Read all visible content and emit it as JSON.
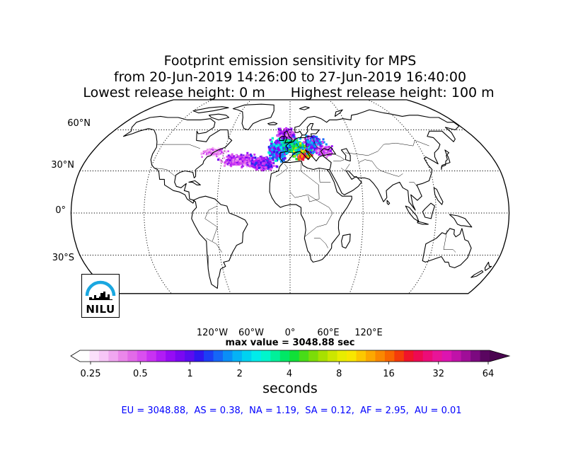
{
  "title": {
    "line1": "Footprint emission sensitivity for MPS",
    "line2": "from 20-Jun-2019 14:26:00 to 27-Jun-2019 16:40:00",
    "line3_left": "Lowest release height: 0 m",
    "line3_right": "Highest release height: 100 m"
  },
  "map": {
    "projection": "Robinson",
    "lat_labels": [
      "60°N",
      "30°N",
      "0°",
      "30°S"
    ],
    "lon_labels": [
      "120°W",
      "60°W",
      "0°",
      "60°E",
      "120°E"
    ],
    "gridlines": true,
    "land_fill": "#ffffff",
    "sensitivity_region": "North Atlantic and Europe"
  },
  "max_value_label": "max value = 3048.88 sec",
  "colorbar": {
    "ticks": [
      "0.25",
      "0.5",
      "1",
      "2",
      "4",
      "8",
      "16",
      "32",
      "64"
    ],
    "unit_label": "seconds",
    "colors": [
      "#ffffff",
      "#fbe0fb",
      "#f7c6f7",
      "#f0a6f0",
      "#ea86ea",
      "#e26ae8",
      "#d94fef",
      "#c832f2",
      "#b11cf5",
      "#960cf5",
      "#7a08f2",
      "#5b0cf0",
      "#3016f0",
      "#1c3ef5",
      "#1566f7",
      "#0a8ef7",
      "#05b2f5",
      "#00d2f0",
      "#00ecea",
      "#00f5cc",
      "#00f09a",
      "#00e866",
      "#10e038",
      "#48dc18",
      "#7cdc08",
      "#a8e000",
      "#cce600",
      "#e8ec00",
      "#f8e600",
      "#fcc800",
      "#fca800",
      "#fa8800",
      "#f86600",
      "#f43c0a",
      "#f0142a",
      "#ee0a52",
      "#ec0c78",
      "#e81498",
      "#dc14b0",
      "#c012a8",
      "#a00e98",
      "#7c0a80",
      "#5a0660"
    ],
    "over_color": "#4a0550"
  },
  "totals": "EU = 3048.88,  AS = 0.38,  NA = 1.19,  SA = 0.12,  AF = 2.95,  AU = 0.01",
  "logo": {
    "text": "NILU",
    "arc_color": "#1aa7e0"
  }
}
